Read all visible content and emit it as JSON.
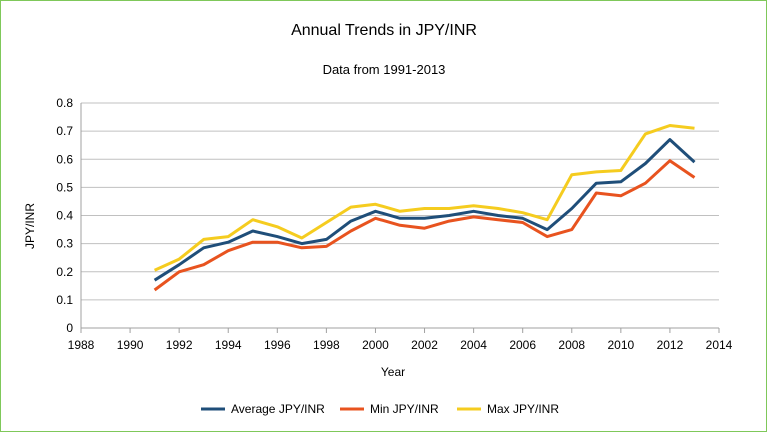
{
  "chart_data": {
    "type": "line",
    "title": "Annual Trends in JPY/INR",
    "subtitle": "Data from 1991-2013",
    "xlabel": "Year",
    "ylabel": "JPY/INR",
    "xlim": [
      1988,
      2014
    ],
    "ylim": [
      0,
      0.8
    ],
    "x_ticks": [
      1988,
      1990,
      1992,
      1994,
      1996,
      1998,
      2000,
      2002,
      2004,
      2006,
      2008,
      2010,
      2012,
      2014
    ],
    "y_ticks": [
      0,
      0.1,
      0.2,
      0.3,
      0.4,
      0.5,
      0.6,
      0.7,
      0.8
    ],
    "grid": "horizontal",
    "legend_position": "bottom",
    "x": [
      1991,
      1992,
      1993,
      1994,
      1995,
      1996,
      1997,
      1998,
      1999,
      2000,
      2001,
      2002,
      2003,
      2004,
      2005,
      2006,
      2007,
      2008,
      2009,
      2010,
      2011,
      2012,
      2013
    ],
    "series": [
      {
        "name": "Average JPY/INR",
        "color": "#1f4e79",
        "values": [
          0.17,
          0.225,
          0.285,
          0.305,
          0.345,
          0.325,
          0.3,
          0.315,
          0.38,
          0.415,
          0.39,
          0.39,
          0.4,
          0.415,
          0.4,
          0.39,
          0.35,
          0.425,
          0.515,
          0.52,
          0.585,
          0.67,
          0.59
        ]
      },
      {
        "name": "Min JPY/INR",
        "color": "#e8531f",
        "values": [
          0.135,
          0.2,
          0.225,
          0.275,
          0.305,
          0.305,
          0.285,
          0.29,
          0.345,
          0.39,
          0.365,
          0.355,
          0.38,
          0.395,
          0.385,
          0.375,
          0.325,
          0.35,
          0.48,
          0.47,
          0.515,
          0.595,
          0.535
        ]
      },
      {
        "name": "Max JPY/INR",
        "color": "#f5cc1f",
        "values": [
          0.205,
          0.245,
          0.315,
          0.325,
          0.385,
          0.36,
          0.32,
          0.375,
          0.43,
          0.44,
          0.415,
          0.425,
          0.425,
          0.435,
          0.425,
          0.41,
          0.385,
          0.545,
          0.555,
          0.56,
          0.69,
          0.72,
          0.71
        ]
      }
    ]
  },
  "colors": {
    "frame_border": "#7fc85a",
    "gridline": "#c0c0c0",
    "axis": "#a0a0a0"
  }
}
